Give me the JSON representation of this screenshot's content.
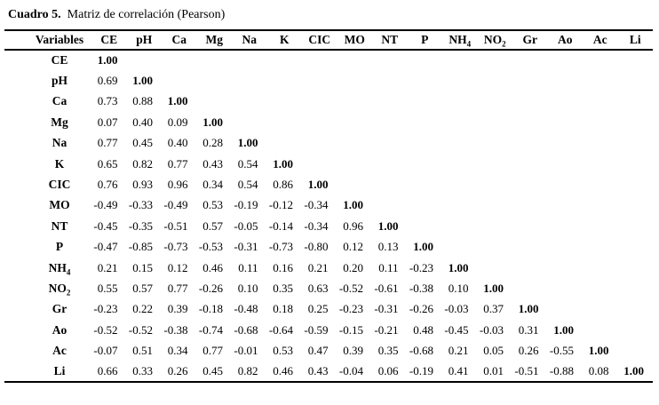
{
  "caption": {
    "label": "Cuadro 5.",
    "title": "Matriz de correlación (Pearson)"
  },
  "table": {
    "corner_header": "Variables",
    "column_headers": [
      "CE",
      "pH",
      "Ca",
      "Mg",
      "Na",
      "K",
      "CIC",
      "MO",
      "NT",
      "P",
      "NH_4",
      "NO_2",
      "Gr",
      "Ao",
      "Ac",
      "Li"
    ],
    "rows": [
      {
        "label": "CE",
        "values": [
          "1.00"
        ]
      },
      {
        "label": "pH",
        "values": [
          "0.69",
          "1.00"
        ]
      },
      {
        "label": "Ca",
        "values": [
          "0.73",
          "0.88",
          "1.00"
        ]
      },
      {
        "label": "Mg",
        "values": [
          "0.07",
          "0.40",
          "0.09",
          "1.00"
        ]
      },
      {
        "label": "Na",
        "values": [
          "0.77",
          "0.45",
          "0.40",
          "0.28",
          "1.00"
        ]
      },
      {
        "label": "K",
        "values": [
          "0.65",
          "0.82",
          "0.77",
          "0.43",
          "0.54",
          "1.00"
        ]
      },
      {
        "label": "CIC",
        "values": [
          "0.76",
          "0.93",
          "0.96",
          "0.34",
          "0.54",
          "0.86",
          "1.00"
        ]
      },
      {
        "label": "MO",
        "values": [
          "-0.49",
          "-0.33",
          "-0.49",
          "0.53",
          "-0.19",
          "-0.12",
          "-0.34",
          "1.00"
        ]
      },
      {
        "label": "NT",
        "values": [
          "-0.45",
          "-0.35",
          "-0.51",
          "0.57",
          "-0.05",
          "-0.14",
          "-0.34",
          "0.96",
          "1.00"
        ]
      },
      {
        "label": "P",
        "values": [
          "-0.47",
          "-0.85",
          "-0.73",
          "-0.53",
          "-0.31",
          "-0.73",
          "-0.80",
          "0.12",
          "0.13",
          "1.00"
        ]
      },
      {
        "label": "NH_4",
        "values": [
          "0.21",
          "0.15",
          "0.12",
          "0.46",
          "0.11",
          "0.16",
          "0.21",
          "0.20",
          "0.11",
          "-0.23",
          "1.00"
        ]
      },
      {
        "label": "NO_2",
        "values": [
          "0.55",
          "0.57",
          "0.77",
          "-0.26",
          "0.10",
          "0.35",
          "0.63",
          "-0.52",
          "-0.61",
          "-0.38",
          "0.10",
          "1.00"
        ]
      },
      {
        "label": "Gr",
        "values": [
          "-0.23",
          "0.22",
          "0.39",
          "-0.18",
          "-0.48",
          "0.18",
          "0.25",
          "-0.23",
          "-0.31",
          "-0.26",
          "-0.03",
          "0.37",
          "1.00"
        ]
      },
      {
        "label": "Ao",
        "values": [
          "-0.52",
          "-0.52",
          "-0.38",
          "-0.74",
          "-0.68",
          "-0.64",
          "-0.59",
          "-0.15",
          "-0.21",
          "0.48",
          "-0.45",
          "-0.03",
          "0.31",
          "1.00"
        ]
      },
      {
        "label": "Ac",
        "values": [
          "-0.07",
          "0.51",
          "0.34",
          "0.77",
          "-0.01",
          "0.53",
          "0.47",
          "0.39",
          "0.35",
          "-0.68",
          "0.21",
          "0.05",
          "0.26",
          "-0.55",
          "1.00"
        ]
      },
      {
        "label": "Li",
        "values": [
          "0.66",
          "0.33",
          "0.26",
          "0.45",
          "0.82",
          "0.46",
          "0.43",
          "-0.04",
          "0.06",
          "-0.19",
          "0.41",
          "0.01",
          "-0.51",
          "-0.88",
          "0.08",
          "1.00"
        ]
      }
    ]
  }
}
